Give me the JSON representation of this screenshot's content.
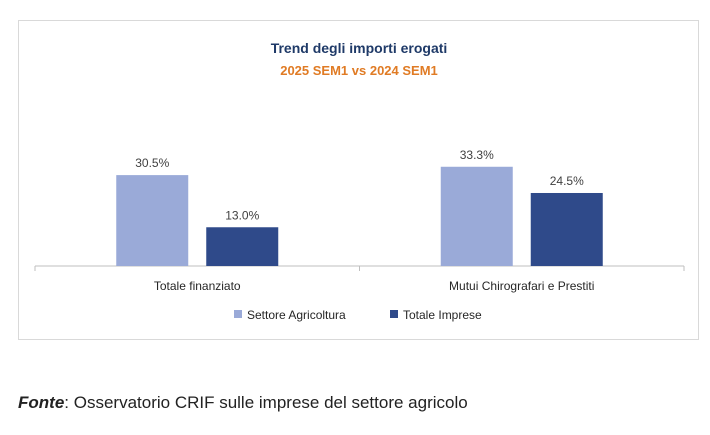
{
  "chart_data": {
    "type": "bar",
    "title": "Trend degli importi erogati",
    "subtitle": "2025 SEM1 vs 2024 SEM1",
    "categories": [
      "Totale finanziato",
      "Mutui Chirografari e Prestiti"
    ],
    "series": [
      {
        "name": "Settore Agricoltura",
        "values": [
          30.5,
          33.3
        ],
        "labels": [
          "30.5%",
          "33.3%"
        ],
        "color": "#9aaad8"
      },
      {
        "name": "Totale Imprese",
        "values": [
          13.0,
          24.5
        ],
        "labels": [
          "13.0%",
          "24.5%"
        ],
        "color": "#2f4a8a"
      }
    ],
    "ylim": [
      0,
      40
    ],
    "grid": false,
    "legend": "bottom"
  },
  "source": {
    "label": "Fonte",
    "text": ": Osservatorio CRIF sulle imprese del settore agricolo"
  }
}
